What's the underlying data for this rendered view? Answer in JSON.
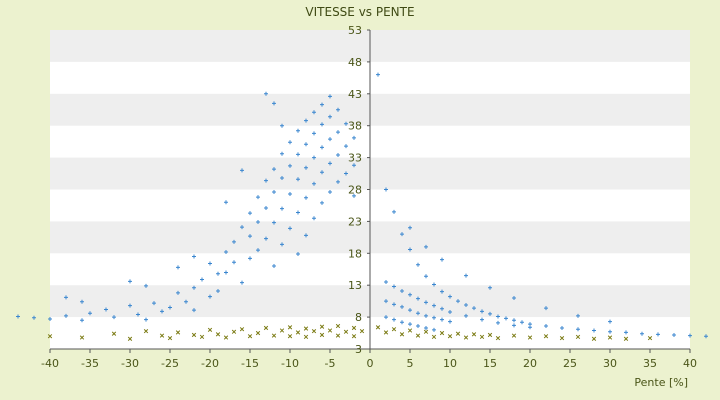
{
  "chart_data": {
    "type": "scatter",
    "title": "VITESSE vs PENTE",
    "xlabel": "Pente [%]",
    "ylabel": "",
    "xlim": [
      -40,
      40
    ],
    "ylim": [
      3,
      53
    ],
    "x_ticks": [
      "-40",
      "-35",
      "-30",
      "-25",
      "-20",
      "-15",
      "-10",
      "-5",
      "0",
      "5",
      "10",
      "15",
      "20",
      "25",
      "30",
      "35",
      "40"
    ],
    "y_ticks": [
      "3",
      "8",
      "13",
      "18",
      "23",
      "28",
      "33",
      "38",
      "43",
      "48",
      "53"
    ],
    "grid": true,
    "band_color": "#eeeeee",
    "plot_bg": "#ffffff",
    "legend": "none",
    "series": [
      {
        "color": "#3a86cf",
        "marker": "plus",
        "points": [
          [
            -44,
            8.1
          ],
          [
            -42,
            7.9
          ],
          [
            -40,
            7.7
          ],
          [
            -38,
            8.2
          ],
          [
            -36,
            7.5
          ],
          [
            -35,
            8.6
          ],
          [
            -33,
            9.2
          ],
          [
            -32,
            8.0
          ],
          [
            -30,
            9.8
          ],
          [
            -29,
            8.4
          ],
          [
            -28,
            7.6
          ],
          [
            -27,
            10.2
          ],
          [
            -26,
            8.9
          ],
          [
            -25,
            9.5
          ],
          [
            -24,
            11.8
          ],
          [
            -23,
            10.4
          ],
          [
            -22,
            12.6
          ],
          [
            -22,
            9.1
          ],
          [
            -21,
            13.9
          ],
          [
            -20,
            11.2
          ],
          [
            -20,
            16.4
          ],
          [
            -19,
            14.8
          ],
          [
            -19,
            12.1
          ],
          [
            -18,
            18.2
          ],
          [
            -18,
            15.0
          ],
          [
            -17,
            19.8
          ],
          [
            -17,
            16.6
          ],
          [
            -16,
            22.1
          ],
          [
            -16,
            13.4
          ],
          [
            -15,
            24.3
          ],
          [
            -15,
            20.7
          ],
          [
            -15,
            17.2
          ],
          [
            -14,
            26.8
          ],
          [
            -14,
            22.9
          ],
          [
            -14,
            18.5
          ],
          [
            -13,
            29.4
          ],
          [
            -13,
            25.1
          ],
          [
            -13,
            20.3
          ],
          [
            -12,
            31.2
          ],
          [
            -12,
            27.6
          ],
          [
            -12,
            22.8
          ],
          [
            -12,
            16.0
          ],
          [
            -11,
            33.6
          ],
          [
            -11,
            29.8
          ],
          [
            -11,
            25.0
          ],
          [
            -11,
            19.4
          ],
          [
            -10,
            35.4
          ],
          [
            -10,
            31.7
          ],
          [
            -10,
            27.3
          ],
          [
            -10,
            21.9
          ],
          [
            -9,
            37.2
          ],
          [
            -9,
            33.5
          ],
          [
            -9,
            29.6
          ],
          [
            -9,
            24.4
          ],
          [
            -9,
            17.9
          ],
          [
            -8,
            38.8
          ],
          [
            -8,
            35.1
          ],
          [
            -8,
            31.4
          ],
          [
            -8,
            26.7
          ],
          [
            -8,
            20.8
          ],
          [
            -7,
            40.1
          ],
          [
            -7,
            36.8
          ],
          [
            -7,
            33.0
          ],
          [
            -7,
            28.9
          ],
          [
            -7,
            23.5
          ],
          [
            -6,
            41.3
          ],
          [
            -6,
            38.2
          ],
          [
            -6,
            34.6
          ],
          [
            -6,
            30.7
          ],
          [
            -6,
            25.9
          ],
          [
            -5,
            42.6
          ],
          [
            -5,
            39.4
          ],
          [
            -5,
            35.9
          ],
          [
            -5,
            32.1
          ],
          [
            -5,
            27.6
          ],
          [
            -4,
            40.5
          ],
          [
            -4,
            37.0
          ],
          [
            -4,
            33.4
          ],
          [
            -4,
            29.2
          ],
          [
            -3,
            38.3
          ],
          [
            -3,
            34.8
          ],
          [
            -3,
            30.5
          ],
          [
            -2,
            36.1
          ],
          [
            -2,
            31.8
          ],
          [
            -2,
            27.0
          ],
          [
            -13,
            43.0
          ],
          [
            -12,
            41.5
          ],
          [
            -11,
            38.0
          ],
          [
            -16,
            31.0
          ],
          [
            -18,
            26.0
          ],
          [
            -22,
            17.5
          ],
          [
            -24,
            15.8
          ],
          [
            -28,
            12.9
          ],
          [
            -30,
            13.6
          ],
          [
            -36,
            10.4
          ],
          [
            -38,
            11.1
          ],
          [
            1,
            46.0
          ],
          [
            2,
            28.0
          ],
          [
            3,
            24.5
          ],
          [
            4,
            21.0
          ],
          [
            5,
            18.6
          ],
          [
            6,
            16.2
          ],
          [
            7,
            14.4
          ],
          [
            8,
            13.1
          ],
          [
            9,
            12.0
          ],
          [
            10,
            11.2
          ],
          [
            11,
            10.5
          ],
          [
            12,
            9.9
          ],
          [
            13,
            9.4
          ],
          [
            14,
            8.9
          ],
          [
            15,
            8.5
          ],
          [
            16,
            8.1
          ],
          [
            17,
            7.8
          ],
          [
            18,
            7.5
          ],
          [
            19,
            7.2
          ],
          [
            20,
            6.9
          ],
          [
            22,
            6.6
          ],
          [
            24,
            6.3
          ],
          [
            26,
            6.1
          ],
          [
            28,
            5.9
          ],
          [
            30,
            5.7
          ],
          [
            32,
            5.6
          ],
          [
            34,
            5.4
          ],
          [
            36,
            5.3
          ],
          [
            38,
            5.2
          ],
          [
            40,
            5.1
          ],
          [
            42,
            5.0
          ],
          [
            2,
            13.5
          ],
          [
            3,
            12.8
          ],
          [
            4,
            12.1
          ],
          [
            5,
            11.5
          ],
          [
            6,
            10.9
          ],
          [
            7,
            10.3
          ],
          [
            8,
            9.8
          ],
          [
            9,
            9.3
          ],
          [
            10,
            8.8
          ],
          [
            12,
            8.2
          ],
          [
            14,
            7.6
          ],
          [
            16,
            7.1
          ],
          [
            18,
            6.7
          ],
          [
            20,
            6.4
          ],
          [
            2,
            10.5
          ],
          [
            3,
            10.0
          ],
          [
            4,
            9.6
          ],
          [
            5,
            9.1
          ],
          [
            6,
            8.6
          ],
          [
            7,
            8.2
          ],
          [
            8,
            7.9
          ],
          [
            9,
            7.6
          ],
          [
            10,
            7.3
          ],
          [
            2,
            8.0
          ],
          [
            3,
            7.6
          ],
          [
            4,
            7.2
          ],
          [
            5,
            6.9
          ],
          [
            6,
            6.6
          ],
          [
            7,
            6.3
          ],
          [
            8,
            6.0
          ],
          [
            5,
            22.0
          ],
          [
            7,
            19.0
          ],
          [
            9,
            17.0
          ],
          [
            12,
            14.5
          ],
          [
            15,
            12.6
          ],
          [
            18,
            11.0
          ],
          [
            22,
            9.4
          ],
          [
            26,
            8.2
          ],
          [
            30,
            7.3
          ]
        ]
      },
      {
        "color": "#7a7a12",
        "marker": "x",
        "points": [
          [
            -40,
            5.0
          ],
          [
            -36,
            4.8
          ],
          [
            -32,
            5.4
          ],
          [
            -30,
            4.6
          ],
          [
            -28,
            5.8
          ],
          [
            -26,
            5.1
          ],
          [
            -25,
            4.7
          ],
          [
            -24,
            5.6
          ],
          [
            -22,
            5.2
          ],
          [
            -21,
            4.9
          ],
          [
            -20,
            6.0
          ],
          [
            -19,
            5.3
          ],
          [
            -18,
            4.8
          ],
          [
            -17,
            5.7
          ],
          [
            -16,
            6.1
          ],
          [
            -15,
            5.0
          ],
          [
            -14,
            5.5
          ],
          [
            -13,
            6.3
          ],
          [
            -12,
            5.1
          ],
          [
            -11,
            5.9
          ],
          [
            -10,
            6.4
          ],
          [
            -10,
            5.0
          ],
          [
            -9,
            5.6
          ],
          [
            -8,
            6.2
          ],
          [
            -8,
            4.9
          ],
          [
            -7,
            5.8
          ],
          [
            -6,
            6.5
          ],
          [
            -6,
            5.2
          ],
          [
            -5,
            5.9
          ],
          [
            -4,
            6.6
          ],
          [
            -4,
            5.1
          ],
          [
            -3,
            5.7
          ],
          [
            -2,
            6.3
          ],
          [
            -2,
            5.0
          ],
          [
            -1,
            5.8
          ],
          [
            1,
            6.4
          ],
          [
            2,
            5.6
          ],
          [
            3,
            6.1
          ],
          [
            4,
            5.3
          ],
          [
            5,
            5.9
          ],
          [
            6,
            5.1
          ],
          [
            7,
            5.7
          ],
          [
            8,
            4.9
          ],
          [
            9,
            5.5
          ],
          [
            10,
            5.0
          ],
          [
            11,
            5.4
          ],
          [
            12,
            4.8
          ],
          [
            13,
            5.3
          ],
          [
            14,
            4.9
          ],
          [
            15,
            5.2
          ],
          [
            16,
            4.7
          ],
          [
            18,
            5.1
          ],
          [
            20,
            4.8
          ],
          [
            22,
            5.0
          ],
          [
            24,
            4.7
          ],
          [
            26,
            4.9
          ],
          [
            28,
            4.6
          ],
          [
            30,
            4.8
          ],
          [
            32,
            4.6
          ],
          [
            35,
            4.7
          ]
        ]
      }
    ]
  }
}
